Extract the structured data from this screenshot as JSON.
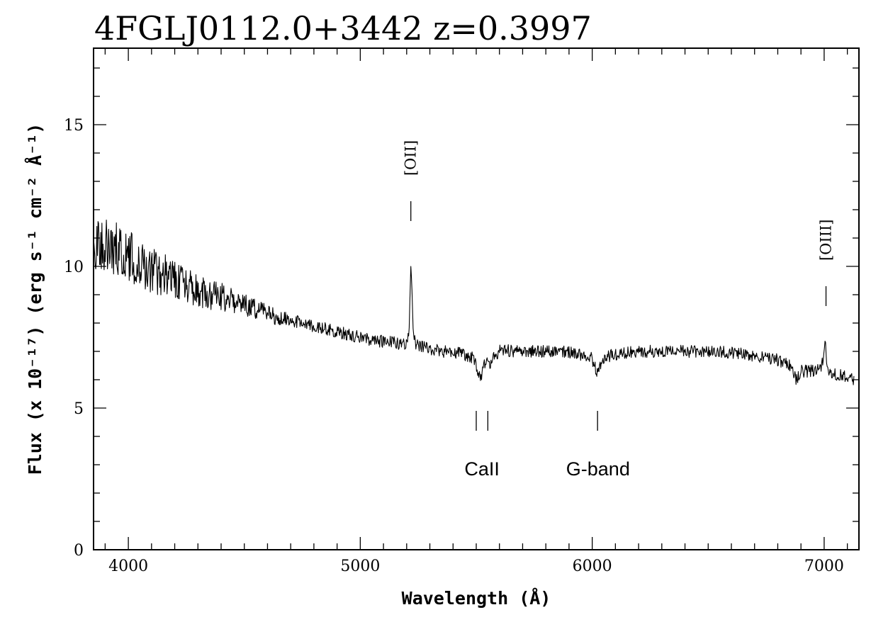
{
  "chart_data": {
    "type": "line",
    "title": "4FGLJ0112.0+3442 z=0.3997",
    "xlabel": "Wavelength (Å)",
    "ylabel": "Flux (x 10⁻¹⁷) (erg s⁻¹ cm⁻² Å⁻¹)",
    "xlim": [
      3850,
      7150
    ],
    "ylim": [
      0,
      17.7
    ],
    "x_ticks": [
      4000,
      5000,
      6000,
      7000
    ],
    "x_tick_labels": [
      "4000",
      "5000",
      "6000",
      "7000"
    ],
    "y_ticks": [
      0,
      5,
      10,
      15
    ],
    "y_tick_labels": [
      "0",
      "5",
      "10",
      "15"
    ],
    "grid": false,
    "series": [
      {
        "color": "#000000",
        "x": [
          3850,
          3900,
          3950,
          4000,
          4050,
          4100,
          4150,
          4200,
          4250,
          4300,
          4350,
          4400,
          4450,
          4500,
          4550,
          4600,
          4650,
          4700,
          4750,
          4800,
          4850,
          4900,
          4950,
          5000,
          5050,
          5100,
          5150,
          5200,
          5210,
          5218,
          5222,
          5228,
          5240,
          5260,
          5300,
          5350,
          5400,
          5450,
          5480,
          5500,
          5520,
          5540,
          5560,
          5580,
          5600,
          5620,
          5650,
          5700,
          5750,
          5800,
          5850,
          5900,
          5950,
          6000,
          6020,
          6030,
          6050,
          6100,
          6150,
          6200,
          6250,
          6300,
          6350,
          6400,
          6450,
          6500,
          6550,
          6600,
          6650,
          6700,
          6750,
          6800,
          6850,
          6880,
          6900,
          6950,
          6990,
          7000,
          7005,
          7010,
          7020,
          7050,
          7100,
          7130
        ],
        "y": [
          11.0,
          10.8,
          10.6,
          10.4,
          10.1,
          9.9,
          9.7,
          9.5,
          9.3,
          9.1,
          9.0,
          8.9,
          8.8,
          8.6,
          8.5,
          8.3,
          8.2,
          8.1,
          8.0,
          7.9,
          7.8,
          7.7,
          7.6,
          7.5,
          7.4,
          7.35,
          7.3,
          7.25,
          7.6,
          10.0,
          9.4,
          7.7,
          7.25,
          7.2,
          7.1,
          7.0,
          6.95,
          6.9,
          6.8,
          6.5,
          6.0,
          6.7,
          6.6,
          6.8,
          7.0,
          7.1,
          7.0,
          7.0,
          7.0,
          7.0,
          7.0,
          6.95,
          6.9,
          6.75,
          6.2,
          6.5,
          6.8,
          6.9,
          6.95,
          7.0,
          7.0,
          7.0,
          7.0,
          7.0,
          7.0,
          7.0,
          7.0,
          6.95,
          6.9,
          6.85,
          6.8,
          6.7,
          6.5,
          6.0,
          6.3,
          6.3,
          6.5,
          7.0,
          7.5,
          6.6,
          6.3,
          6.2,
          6.1,
          6.0
        ]
      }
    ],
    "annotations": [
      {
        "text": "[OII]",
        "orientation": "vertical",
        "x": 5218,
        "tick_y": [
          12.3,
          11.6
        ]
      },
      {
        "text": "[OIII]",
        "orientation": "vertical",
        "x": 7008,
        "tick_y": [
          9.3,
          8.6
        ]
      },
      {
        "text": "CaII",
        "orientation": "horizontal",
        "ticks_x": [
          5500,
          5550
        ],
        "tick_y": [
          4.9,
          4.2
        ],
        "text_x": 5525,
        "text_y": 2.85
      },
      {
        "text": "G-band",
        "orientation": "horizontal",
        "ticks_x": [
          6023
        ],
        "tick_y": [
          4.9,
          4.2
        ],
        "text_x": 6025,
        "text_y": 2.85
      }
    ]
  }
}
